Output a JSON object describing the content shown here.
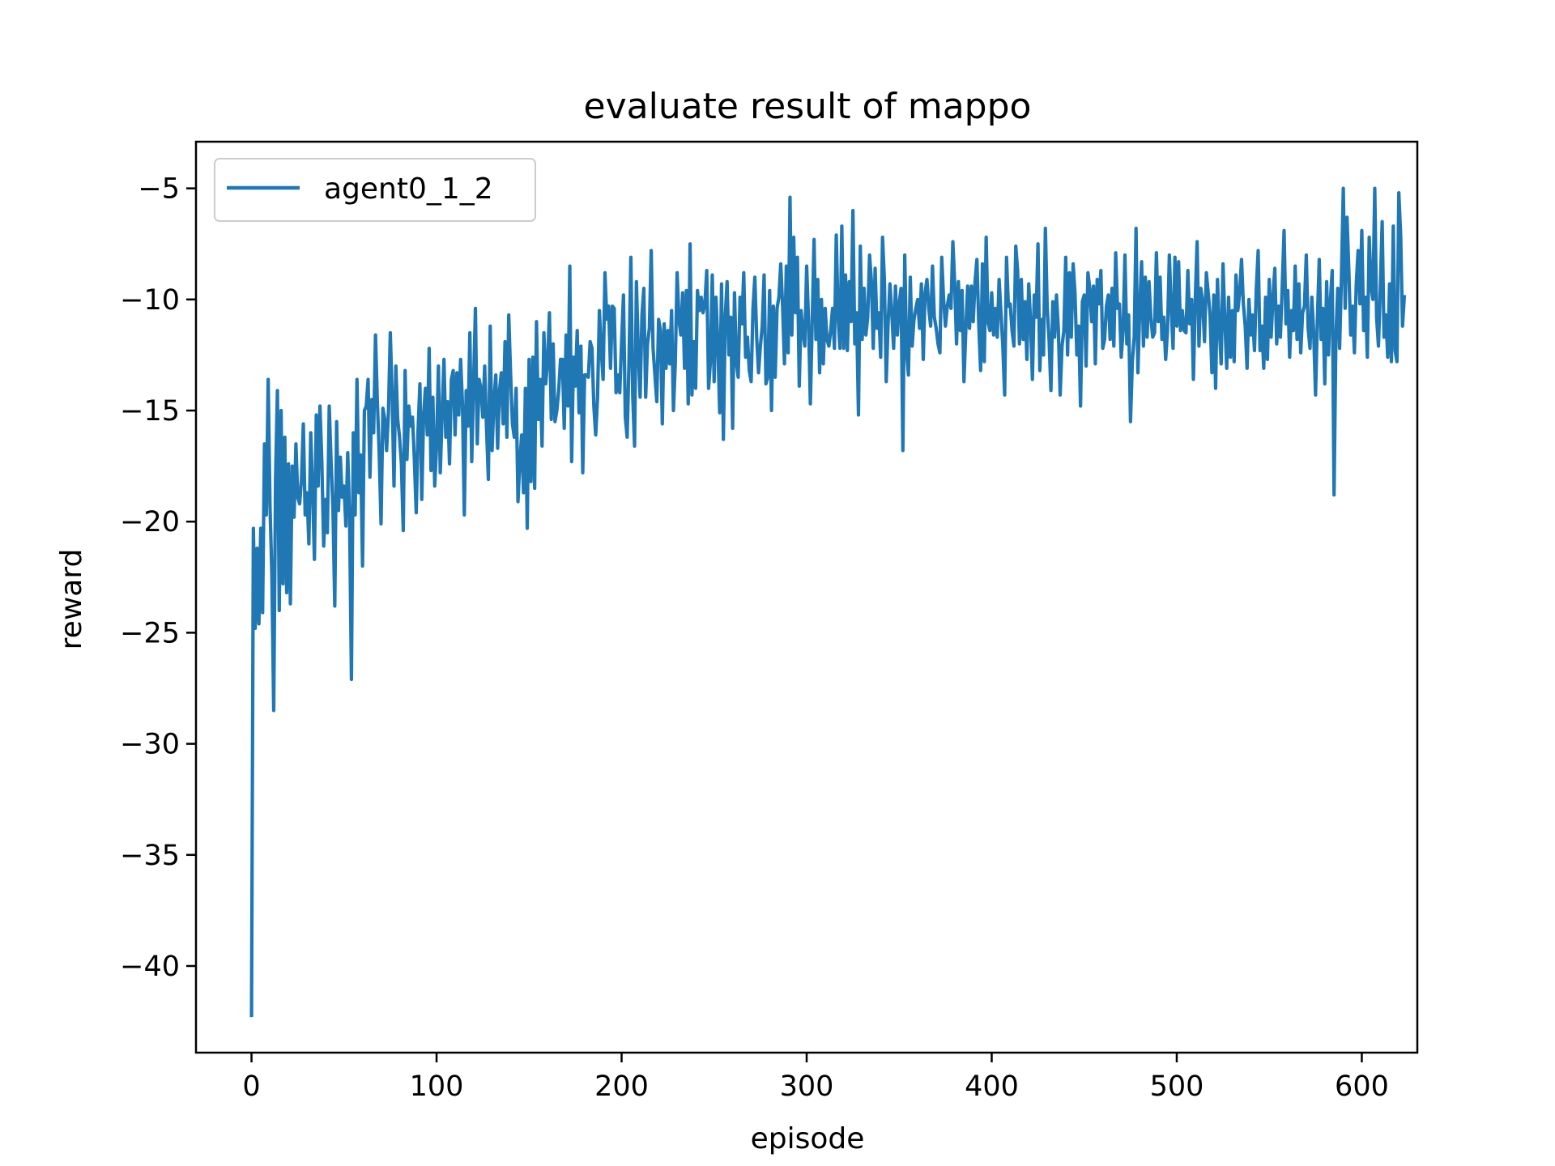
{
  "chart_data": {
    "type": "line",
    "title": "evaluate result of mappo",
    "xlabel": "episode",
    "ylabel": "reward",
    "xlim": [
      -30,
      630
    ],
    "ylim": [
      -43.9,
      -2.9
    ],
    "xticks": [
      0,
      100,
      200,
      300,
      400,
      500,
      600
    ],
    "yticks": [
      -40,
      -35,
      -30,
      -25,
      -20,
      -15,
      -10,
      -5
    ],
    "xtick_labels": [
      "0",
      "100",
      "200",
      "300",
      "400",
      "500",
      "600"
    ],
    "ytick_labels": [
      "−40",
      "−35",
      "−30",
      "−25",
      "−20",
      "−15",
      "−10",
      "−5"
    ],
    "grid": false,
    "legend_position": "upper-left",
    "color": "#1f77b4",
    "series": [
      {
        "name": "agent0_1_2",
        "x_start": 0,
        "x_step": 1,
        "values": [
          -42.3,
          -20.3,
          -24.8,
          -21.2,
          -24.6,
          -20.3,
          -24.1,
          -16.5,
          -19.7,
          -13.6,
          -19.3,
          -22.4,
          -28.5,
          -18.0,
          -14.1,
          -24.0,
          -15.0,
          -22.8,
          -16.2,
          -23.2,
          -17.4,
          -23.7,
          -17.5,
          -19.8,
          -16.5,
          -18.9,
          -19.2,
          -18.1,
          -15.6,
          -19.7,
          -18.7,
          -21.0,
          -16.0,
          -18.5,
          -21.7,
          -15.2,
          -18.4,
          -14.8,
          -17.3,
          -21.1,
          -19.0,
          -20.5,
          -14.8,
          -17.3,
          -19.4,
          -23.8,
          -15.5,
          -19.5,
          -17.1,
          -18.9,
          -18.4,
          -20.2,
          -16.9,
          -19.8,
          -27.1,
          -16.0,
          -19.7,
          -13.6,
          -18.7,
          -17.0,
          -22.0,
          -15.0,
          -14.8,
          -13.6,
          -18.0,
          -14.5,
          -16.0,
          -11.6,
          -14.6,
          -16.9,
          -20.1,
          -14.9,
          -15.4,
          -16.8,
          -15.1,
          -11.5,
          -14.3,
          -18.4,
          -13.0,
          -15.4,
          -16.2,
          -17.4,
          -20.4,
          -13.2,
          -17.2,
          -14.8,
          -15.7,
          -15.3,
          -17.2,
          -19.6,
          -15.9,
          -13.8,
          -19.0,
          -15.2,
          -14.0,
          -16.1,
          -12.2,
          -17.7,
          -14.4,
          -18.4,
          -16.6,
          -13.0,
          -17.8,
          -15.2,
          -12.7,
          -16.2,
          -14.6,
          -17.4,
          -13.6,
          -13.2,
          -16.1,
          -13.3,
          -15.2,
          -12.7,
          -14.7,
          -19.7,
          -14.1,
          -15.7,
          -11.5,
          -17.3,
          -13.8,
          -10.4,
          -16.5,
          -13.6,
          -14.0,
          -15.3,
          -13.0,
          -15.8,
          -18.1,
          -11.2,
          -16.8,
          -14.6,
          -13.4,
          -16.7,
          -14.1,
          -13.3,
          -15.6,
          -11.9,
          -16.2,
          -10.7,
          -13.3,
          -15.6,
          -16.2,
          -14.0,
          -19.1,
          -17.3,
          -16.1,
          -18.7,
          -14.0,
          -20.3,
          -12.7,
          -18.2,
          -12.6,
          -18.5,
          -11.0,
          -15.4,
          -13.6,
          -16.6,
          -11.5,
          -13.8,
          -12.8,
          -10.6,
          -15.4,
          -12.0,
          -15.5,
          -15.0,
          -14.1,
          -12.7,
          -12.7,
          -15.8,
          -11.6,
          -14.8,
          -8.5,
          -17.3,
          -12.6,
          -13.9,
          -11.4,
          -15.1,
          -12.1,
          -17.8,
          -13.4,
          -13.4,
          -13.5,
          -11.9,
          -12.2,
          -14.8,
          -16.1,
          -14.4,
          -10.5,
          -12.3,
          -13.6,
          -8.8,
          -10.9,
          -10.3,
          -13.1,
          -10.3,
          -10.4,
          -14.2,
          -13.4,
          -14.2,
          -11.9,
          -9.8,
          -15.3,
          -16.2,
          -12.8,
          -8.1,
          -14.3,
          -16.6,
          -9.2,
          -12.3,
          -14.4,
          -10.7,
          -9.5,
          -14.4,
          -12.0,
          -11.3,
          -7.8,
          -12.2,
          -13.4,
          -14.6,
          -10.9,
          -11.4,
          -15.6,
          -11.1,
          -13.1,
          -11.4,
          -12.9,
          -10.5,
          -15.0,
          -12.9,
          -8.8,
          -10.9,
          -11.6,
          -9.7,
          -13.1,
          -9.6,
          -14.7,
          -7.5,
          -14.3,
          -11.9,
          -14.0,
          -9.6,
          -10.5,
          -9.9,
          -10.6,
          -10.2,
          -8.7,
          -14.0,
          -12.8,
          -8.9,
          -13.7,
          -9.9,
          -12.0,
          -15.1,
          -9.3,
          -16.3,
          -10.8,
          -9.2,
          -12.5,
          -10.8,
          -15.8,
          -9.7,
          -12.8,
          -13.5,
          -9.9,
          -11.1,
          -8.8,
          -12.6,
          -11.7,
          -13.2,
          -13.7,
          -10.4,
          -9.0,
          -11.7,
          -13.3,
          -12.1,
          -11.2,
          -8.9,
          -13.8,
          -13.5,
          -9.6,
          -15.0,
          -10.3,
          -13.5,
          -10.4,
          -9.9,
          -8.4,
          -10.3,
          -12.9,
          -8.5,
          -12.4,
          -5.4,
          -11.6,
          -7.2,
          -10.6,
          -8.1,
          -13.9,
          -10.5,
          -11.5,
          -12.1,
          -8.5,
          -10.9,
          -14.7,
          -11.0,
          -7.3,
          -11.8,
          -9.1,
          -13.3,
          -10.0,
          -12.9,
          -10.4,
          -11.8,
          -12.1,
          -11.4,
          -10.4,
          -12.2,
          -7.1,
          -10.8,
          -12.2,
          -6.7,
          -12.2,
          -8.9,
          -12.3,
          -9.2,
          -11.0,
          -6.0,
          -12.0,
          -10.6,
          -15.2,
          -7.6,
          -11.8,
          -9.5,
          -11.6,
          -10.8,
          -8.0,
          -9.2,
          -12.2,
          -8.6,
          -11.3,
          -10.6,
          -12.6,
          -7.2,
          -9.1,
          -13.7,
          -11.1,
          -9.3,
          -10.6,
          -12.2,
          -9.4,
          -11.6,
          -10.2,
          -9.5,
          -16.8,
          -8.0,
          -12.3,
          -13.4,
          -9.0,
          -12.1,
          -10.9,
          -10.4,
          -10.0,
          -11.3,
          -9.3,
          -12.7,
          -9.7,
          -9.1,
          -10.4,
          -11.2,
          -8.5,
          -10.8,
          -11.3,
          -12.0,
          -12.4,
          -8.1,
          -10.0,
          -11.2,
          -10.3,
          -9.8,
          -10.4,
          -7.4,
          -9.3,
          -12.0,
          -9.2,
          -11.4,
          -9.6,
          -13.7,
          -11.4,
          -9.4,
          -11.3,
          -9.4,
          -11.0,
          -9.2,
          -8.2,
          -11.1,
          -13.2,
          -8.4,
          -12.8,
          -7.2,
          -11.0,
          -11.4,
          -9.7,
          -11.6,
          -10.4,
          -11.7,
          -9.1,
          -10.6,
          -12.1,
          -14.3,
          -8.1,
          -10.3,
          -10.2,
          -11.4,
          -12.1,
          -7.6,
          -8.7,
          -12.0,
          -9.1,
          -11.8,
          -10.1,
          -12.7,
          -9.3,
          -11.0,
          -13.6,
          -9.8,
          -10.8,
          -7.5,
          -13.2,
          -10.9,
          -12.5,
          -6.8,
          -10.4,
          -11.8,
          -14.1,
          -10.1,
          -11.7,
          -9.8,
          -11.3,
          -14.3,
          -12.1,
          -11.4,
          -8.1,
          -12.5,
          -8.8,
          -11.7,
          -8.4,
          -9.7,
          -12.5,
          -11.2,
          -14.8,
          -10.1,
          -9.8,
          -13.0,
          -8.8,
          -9.5,
          -11.0,
          -9.4,
          -12.9,
          -9.1,
          -10.2,
          -8.7,
          -12.2,
          -11.8,
          -10.3,
          -9.8,
          -11.8,
          -9.5,
          -12.1,
          -7.9,
          -10.4,
          -10.2,
          -12.6,
          -11.4,
          -8.0,
          -12.0,
          -10.7,
          -15.5,
          -12.8,
          -11.7,
          -6.8,
          -13.3,
          -10.4,
          -8.3,
          -12.1,
          -9.0,
          -11.7,
          -9.2,
          -10.8,
          -11.7,
          -11.5,
          -7.9,
          -11.0,
          -9.0,
          -11.8,
          -10.8,
          -12.7,
          -11.4,
          -8.0,
          -10.4,
          -12.2,
          -8.1,
          -11.2,
          -8.3,
          -11.4,
          -10.5,
          -11.4,
          -11.5,
          -8.7,
          -11.1,
          -10.0,
          -13.6,
          -10.0,
          -7.4,
          -12.1,
          -9.5,
          -10.1,
          -11.9,
          -8.8,
          -9.7,
          -10.7,
          -13.3,
          -9.8,
          -14.0,
          -9.1,
          -11.3,
          -12.9,
          -8.4,
          -11.0,
          -13.1,
          -9.9,
          -12.6,
          -10.5,
          -12.8,
          -8.9,
          -10.5,
          -9.7,
          -8.2,
          -10.2,
          -11.2,
          -13.1,
          -10.0,
          -11.6,
          -10.7,
          -12.3,
          -9.5,
          -7.8,
          -12.3,
          -11.2,
          -13.1,
          -9.9,
          -12.7,
          -9.1,
          -11.7,
          -9.9,
          -8.6,
          -12.0,
          -10.3,
          -11.7,
          -9.4,
          -6.9,
          -11.1,
          -9.6,
          -12.6,
          -10.5,
          -11.4,
          -8.5,
          -11.8,
          -9.3,
          -12.4,
          -10.6,
          -10.3,
          -8.0,
          -11.3,
          -12.2,
          -9.9,
          -11.5,
          -14.3,
          -10.9,
          -8.2,
          -11.8,
          -10.4,
          -13.8,
          -9.2,
          -12.5,
          -10.1,
          -8.7,
          -18.8,
          -11.7,
          -9.5,
          -12.2,
          -9.0,
          -5.0,
          -10.4,
          -6.3,
          -8.7,
          -11.6,
          -10.3,
          -12.4,
          -9.3,
          -7.8,
          -10.2,
          -6.9,
          -11.4,
          -9.9,
          -12.6,
          -7.2,
          -9.4,
          -10.0,
          -5.0,
          -10.8,
          -12.1,
          -9.5,
          -6.5,
          -11.7,
          -10.7,
          -12.6,
          -9.3,
          -12.8,
          -6.7,
          -12.3,
          -12.8,
          -5.2,
          -7.1,
          -11.2,
          -9.8
        ],
        "color": "#1f77b4"
      }
    ]
  }
}
